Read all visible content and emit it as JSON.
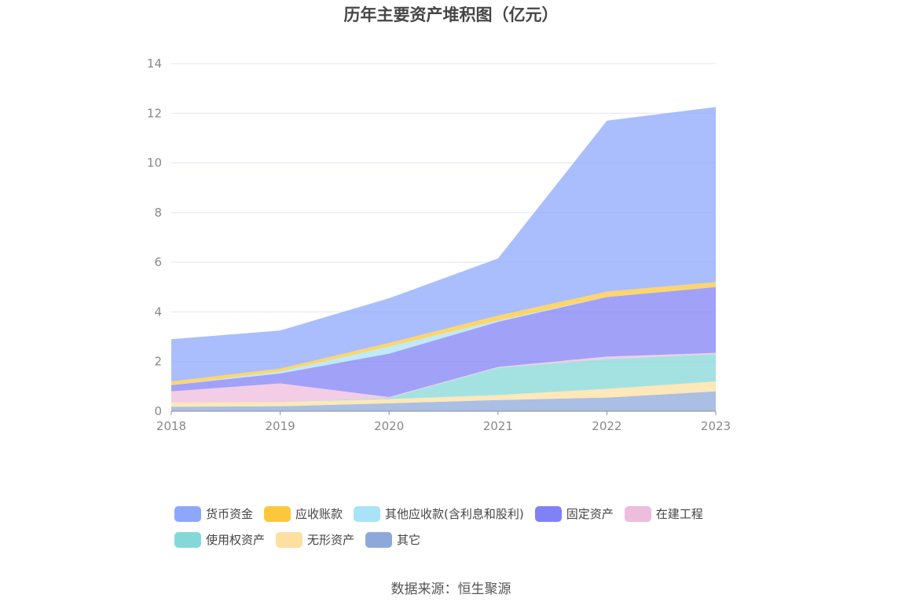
{
  "chart_data": {
    "type": "area",
    "stacked": true,
    "title": "历年主要资产堆积图（亿元）",
    "categories": [
      "2018",
      "2019",
      "2020",
      "2021",
      "2022",
      "2023"
    ],
    "ylim": [
      0,
      14
    ],
    "yticks": [
      "0",
      "2",
      "4",
      "6",
      "8",
      "10",
      "12",
      "14"
    ],
    "grid": true,
    "legend_position": "bottom",
    "series": [
      {
        "name": "其它",
        "color": "#8ea9d9",
        "values": [
          0.18,
          0.2,
          0.32,
          0.45,
          0.55,
          0.8
        ]
      },
      {
        "name": "无形资产",
        "color": "#fddfa2",
        "values": [
          0.17,
          0.17,
          0.17,
          0.2,
          0.35,
          0.4
        ]
      },
      {
        "name": "使用权资产",
        "color": "#86d8d8",
        "values": [
          0.0,
          0.0,
          0.05,
          1.1,
          1.2,
          1.1
        ]
      },
      {
        "name": "在建工程",
        "color": "#eebcdc",
        "values": [
          0.45,
          0.75,
          0.03,
          0.03,
          0.1,
          0.05
        ]
      },
      {
        "name": "固定资产",
        "color": "#8181f6",
        "values": [
          0.25,
          0.4,
          1.75,
          1.82,
          2.4,
          2.65
        ]
      },
      {
        "name": "其他应收款(含利息和股利)",
        "color": "#a9e3f8",
        "values": [
          0.0,
          0.08,
          0.28,
          0.05,
          0.0,
          0.0
        ]
      },
      {
        "name": "应收账款",
        "color": "#fbc83b",
        "values": [
          0.15,
          0.12,
          0.15,
          0.2,
          0.22,
          0.2
        ]
      },
      {
        "name": "货币资金",
        "color": "#8da7fc",
        "values": [
          1.7,
          1.53,
          1.8,
          2.3,
          6.88,
          7.05
        ]
      }
    ]
  },
  "legend_rows": [
    [
      {
        "name": "货币资金",
        "color": "#8da7fc"
      },
      {
        "name": "应收账款",
        "color": "#fbc83b"
      },
      {
        "name": "其他应收款(含利息和股利)",
        "color": "#a9e3f8"
      },
      {
        "name": "固定资产",
        "color": "#8181f6"
      },
      {
        "name": "在建工程",
        "color": "#eebcdc"
      }
    ],
    [
      {
        "name": "使用权资产",
        "color": "#86d8d8"
      },
      {
        "name": "无形资产",
        "color": "#fddfa2"
      },
      {
        "name": "其它",
        "color": "#8ea9d9"
      }
    ]
  ],
  "source": "数据来源：恒生聚源"
}
